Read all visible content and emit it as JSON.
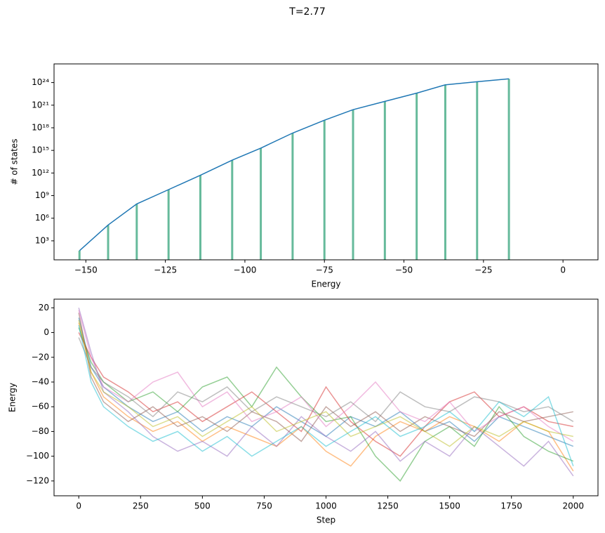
{
  "title": "T=2.77",
  "chart_data": [
    {
      "type": "line",
      "xlabel": "Energy",
      "ylabel": "# of states",
      "log_y": true,
      "x": [
        -152,
        -143,
        -134,
        -124,
        -114,
        -104,
        -95,
        -85,
        -75,
        -66,
        -56,
        -46,
        -37,
        -27,
        -17
      ],
      "series": [
        {
          "color": "#1f77b4",
          "values": [
            50,
            126000,
            79000000,
            6300000000,
            500000000000,
            50000000000000,
            2000000000000000,
            200000000000000000,
            10000000000000000000,
            2.5e+20,
            3.2e+21,
            4e+22,
            5e+23,
            1.3e+24,
            3.2e+24
          ]
        }
      ],
      "stem_color": "#4caf8a",
      "xlim": [
        -160,
        11
      ],
      "xticks": [
        {
          "value": -150,
          "label": "−150"
        },
        {
          "value": -125,
          "label": "−125"
        },
        {
          "value": -100,
          "label": "−100"
        },
        {
          "value": -75,
          "label": "−75"
        },
        {
          "value": -50,
          "label": "−50"
        },
        {
          "value": -25,
          "label": "−25"
        },
        0
      ],
      "ylim": [
        3,
        3e+26
      ],
      "yticks": [
        {
          "value": 1000,
          "label": "10³"
        },
        {
          "value": 1000000,
          "label": "10⁶"
        },
        {
          "value": 1000000000,
          "label": "10⁹"
        },
        {
          "value": 1000000000000,
          "label": "10¹²"
        },
        {
          "value": 1000000000000000,
          "label": "10¹⁵"
        },
        {
          "value": 1000000000000000000,
          "label": "10¹⁸"
        },
        {
          "value": 1e+21,
          "label": "10²¹"
        },
        {
          "value": 1e+24,
          "label": "10²⁴"
        }
      ]
    },
    {
      "type": "line",
      "xlabel": "Step",
      "ylabel": "Energy",
      "log_y": false,
      "alpha": 0.5,
      "x": [
        0,
        50,
        100,
        200,
        300,
        400,
        500,
        600,
        700,
        800,
        900,
        1000,
        1100,
        1200,
        1300,
        1400,
        1500,
        1600,
        1700,
        1800,
        1900,
        2000
      ],
      "series": [
        {
          "color": "#1f77b4",
          "values": [
            12,
            -28,
            -44,
            -60,
            -72,
            -64,
            -80,
            -68,
            -76,
            -60,
            -72,
            -84,
            -68,
            -76,
            -64,
            -80,
            -72,
            -88,
            -68,
            -76,
            -84,
            -92
          ]
        },
        {
          "color": "#ff7f0e",
          "values": [
            8,
            -32,
            -52,
            -68,
            -80,
            -72,
            -88,
            -76,
            -84,
            -92,
            -76,
            -96,
            -108,
            -84,
            -72,
            -80,
            -68,
            -76,
            -88,
            -72,
            -80,
            -112
          ]
        },
        {
          "color": "#2ca02c",
          "values": [
            4,
            -24,
            -40,
            -56,
            -48,
            -64,
            -44,
            -36,
            -60,
            -28,
            -52,
            -72,
            -68,
            -100,
            -120,
            -88,
            -76,
            -92,
            -60,
            -84,
            -96,
            -104
          ]
        },
        {
          "color": "#d62728",
          "values": [
            0,
            -20,
            -36,
            -48,
            -64,
            -56,
            -72,
            -60,
            -48,
            -64,
            -80,
            -44,
            -72,
            -88,
            -100,
            -76,
            -56,
            -48,
            -68,
            -60,
            -72,
            -76
          ]
        },
        {
          "color": "#9467bd",
          "values": [
            20,
            -16,
            -48,
            -64,
            -84,
            -96,
            -88,
            -100,
            -76,
            -92,
            -68,
            -84,
            -96,
            -80,
            -104,
            -88,
            -100,
            -76,
            -92,
            -108,
            -88,
            -116
          ]
        },
        {
          "color": "#8c564b",
          "values": [
            16,
            -36,
            -56,
            -72,
            -60,
            -76,
            -68,
            -80,
            -64,
            -72,
            -88,
            -60,
            -76,
            -64,
            -80,
            -68,
            -76,
            -84,
            -64,
            -72,
            -68,
            -64
          ]
        },
        {
          "color": "#e377c2",
          "values": [
            18,
            -20,
            -44,
            -56,
            -40,
            -32,
            -60,
            -48,
            -72,
            -64,
            -52,
            -76,
            -60,
            -40,
            -64,
            -72,
            -56,
            -80,
            -68,
            -60,
            -76,
            -88
          ]
        },
        {
          "color": "#7f7f7f",
          "values": [
            -4,
            -28,
            -40,
            -52,
            -68,
            -48,
            -56,
            -44,
            -64,
            -52,
            -60,
            -68,
            -56,
            -72,
            -48,
            -60,
            -64,
            -52,
            -56,
            -64,
            -60,
            -72
          ]
        },
        {
          "color": "#bcbd22",
          "values": [
            10,
            -32,
            -48,
            -60,
            -76,
            -68,
            -84,
            -72,
            -60,
            -80,
            -72,
            -64,
            -84,
            -76,
            -68,
            -80,
            -92,
            -76,
            -84,
            -72,
            -80,
            -84
          ]
        },
        {
          "color": "#17becf",
          "values": [
            6,
            -40,
            -60,
            -76,
            -88,
            -80,
            -96,
            -84,
            -100,
            -88,
            -76,
            -92,
            -80,
            -68,
            -84,
            -76,
            -64,
            -80,
            -56,
            -68,
            -52,
            -108
          ]
        }
      ],
      "xlim": [
        -100,
        2100
      ],
      "xticks": [
        0,
        250,
        500,
        750,
        1000,
        1250,
        1500,
        1750,
        2000
      ],
      "ylim": [
        -132,
        27
      ],
      "yticks": [
        20,
        0,
        {
          "value": -20,
          "label": "−20"
        },
        {
          "value": -40,
          "label": "−40"
        },
        {
          "value": -60,
          "label": "−60"
        },
        {
          "value": -80,
          "label": "−80"
        },
        {
          "value": -100,
          "label": "−100"
        },
        {
          "value": -120,
          "label": "−120"
        }
      ]
    }
  ]
}
